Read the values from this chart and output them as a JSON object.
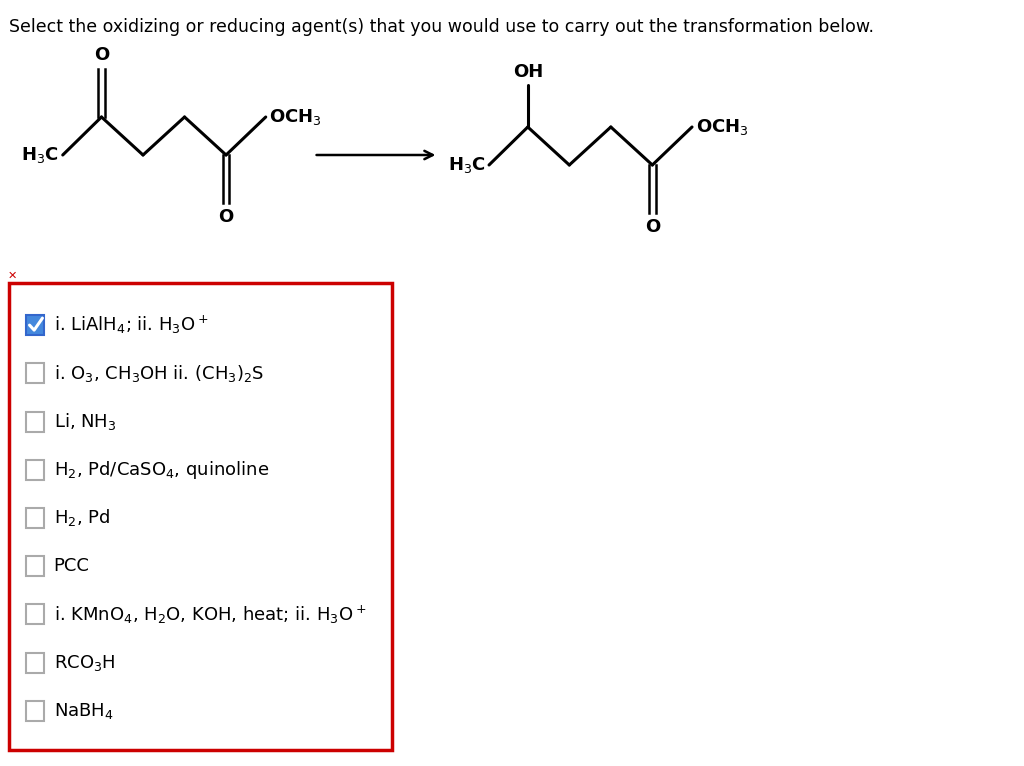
{
  "title": "Select the oxidizing or reducing agent(s) that you would use to carry out the transformation below.",
  "title_fontsize": 12.5,
  "background_color": "#ffffff",
  "options": [
    {
      "text": "i. LiAlH$_4$; ii. H$_3$O$^+$",
      "checked": true
    },
    {
      "text": "i. O$_3$, CH$_3$OH ii. (CH$_3$)$_2$S",
      "checked": false
    },
    {
      "text": "Li, NH$_3$",
      "checked": false
    },
    {
      "text": "H$_2$, Pd/CaSO$_4$, quinoline",
      "checked": false
    },
    {
      "text": "H$_2$, Pd",
      "checked": false
    },
    {
      "text": "PCC",
      "checked": false
    },
    {
      "text": "i. KMnO$_4$, H$_2$O, KOH, heat; ii. H$_3$O$^+$",
      "checked": false
    },
    {
      "text": "RCO$_3$H",
      "checked": false
    },
    {
      "text": "NaBH$_4$",
      "checked": false
    }
  ],
  "box_color": "#cc0000",
  "check_fill_color": "#4488dd",
  "check_border_color": "#3366cc",
  "x_mark_color": "#cc0000",
  "option_fontsize": 13
}
